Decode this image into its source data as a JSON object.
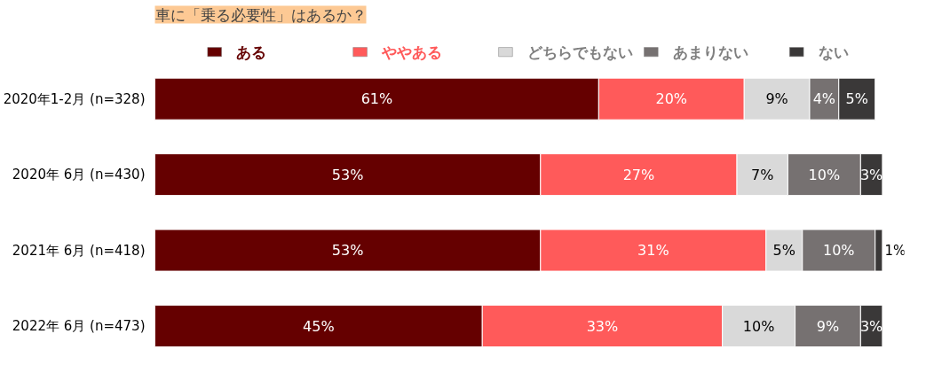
{
  "chart_data": {
    "type": "bar",
    "orientation": "horizontal",
    "stacked": true,
    "title": "車に「乗る必要性」はあるか？",
    "categories": [
      "2020年1-2月 (n=328)",
      "2020年 6月 (n=430)",
      "2021年 6月 (n=418)",
      "2022年 6月 (n=473)"
    ],
    "series": [
      {
        "name": "ある",
        "color": "#650000",
        "values": [
          61,
          53,
          53,
          45
        ],
        "value_labels": [
          "61%",
          "53%",
          "53%",
          "45%"
        ]
      },
      {
        "name": "ややある",
        "color": "#ff5a5a",
        "values": [
          20,
          27,
          31,
          33
        ],
        "value_labels": [
          "20%",
          "27%",
          "31%",
          "33%"
        ]
      },
      {
        "name": "どちらでもない",
        "color": "#d9d9d9",
        "values": [
          9,
          7,
          5,
          10
        ],
        "value_labels": [
          "9%",
          "7%",
          "5%",
          "10%"
        ]
      },
      {
        "name": "あまりない",
        "color": "#767171",
        "values": [
          4,
          10,
          10,
          9
        ],
        "value_labels": [
          "4%",
          "10%",
          "10%",
          "9%"
        ]
      },
      {
        "name": "ない",
        "color": "#3a3838",
        "values": [
          5,
          3,
          1,
          3
        ],
        "value_labels": [
          "5%",
          "3%",
          "1%",
          "3%"
        ]
      }
    ],
    "tick_labels": "y",
    "legend": "top",
    "grid": false
  }
}
